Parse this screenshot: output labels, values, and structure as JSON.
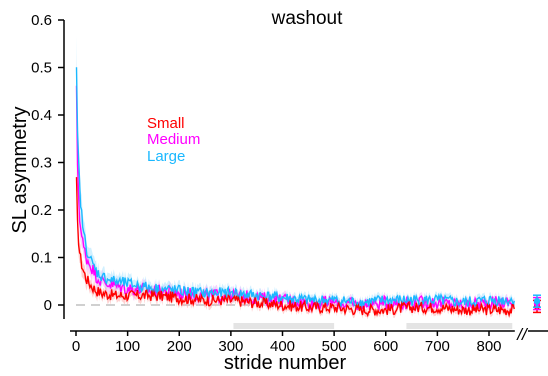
{
  "chart_data": {
    "type": "line",
    "title": "washout",
    "xlabel": "stride number",
    "ylabel": "SL asymmetry",
    "xlim": [
      -5,
      870
    ],
    "ylim": [
      -0.03,
      0.6
    ],
    "xticks": [
      0,
      100,
      200,
      300,
      400,
      500,
      600,
      700,
      800
    ],
    "yticks": [
      0,
      0.1,
      0.2,
      0.3,
      0.4,
      0.5,
      0.6
    ],
    "ytick_labels": [
      "0",
      "0.1",
      "0.2",
      "0.3",
      "0.4",
      "0.5",
      "0.6"
    ],
    "axis_break_marker": "//",
    "legend_position": "upper-left (inside plot)",
    "grid": false,
    "series": [
      {
        "name": "Small",
        "color": "#ff0000",
        "x": [
          1,
          3,
          6,
          10,
          15,
          20,
          30,
          40,
          50,
          75,
          100,
          150,
          200,
          250,
          300,
          350,
          400,
          450,
          500,
          550,
          600,
          650,
          700,
          750,
          800,
          850
        ],
        "values": [
          0.26,
          0.17,
          0.12,
          0.09,
          0.07,
          0.055,
          0.04,
          0.03,
          0.025,
          0.02,
          0.02,
          0.02,
          0.015,
          0.01,
          0.01,
          0.005,
          0.0,
          -0.005,
          -0.005,
          -0.01,
          -0.01,
          -0.005,
          -0.005,
          -0.01,
          -0.01,
          -0.01
        ],
        "endpoint_value": -0.003
      },
      {
        "name": "Medium",
        "color": "#ff00ff",
        "x": [
          1,
          3,
          6,
          10,
          15,
          20,
          30,
          40,
          50,
          75,
          100,
          150,
          200,
          250,
          300,
          350,
          400,
          450,
          500,
          550,
          600,
          650,
          700,
          750,
          800,
          850
        ],
        "values": [
          0.45,
          0.3,
          0.2,
          0.15,
          0.12,
          0.1,
          0.08,
          0.06,
          0.05,
          0.04,
          0.035,
          0.03,
          0.025,
          0.02,
          0.02,
          0.015,
          0.01,
          0.005,
          0.005,
          0.0,
          0.005,
          0.005,
          0.005,
          0.0,
          0.005,
          0.005
        ],
        "endpoint_value": 0.003
      },
      {
        "name": "Large",
        "color": "#1ab8ff",
        "x": [
          1,
          3,
          6,
          10,
          15,
          20,
          30,
          40,
          50,
          75,
          100,
          150,
          200,
          250,
          300,
          350,
          400,
          450,
          500,
          550,
          600,
          650,
          700,
          750,
          800,
          850
        ],
        "values": [
          0.49,
          0.36,
          0.27,
          0.2,
          0.15,
          0.12,
          0.09,
          0.07,
          0.06,
          0.05,
          0.045,
          0.035,
          0.03,
          0.025,
          0.025,
          0.02,
          0.015,
          0.01,
          0.01,
          0.005,
          0.01,
          0.01,
          0.01,
          0.005,
          0.01,
          0.01
        ],
        "endpoint_value": 0.008
      }
    ]
  }
}
